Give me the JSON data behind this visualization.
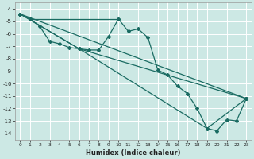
{
  "xlabel": "Humidex (Indice chaleur)",
  "bg_color": "#cce8e4",
  "grid_color": "#ffffff",
  "line_color": "#1a6b62",
  "xlim": [
    -0.5,
    23.5
  ],
  "ylim": [
    -14.5,
    -3.5
  ],
  "xticks": [
    0,
    1,
    2,
    3,
    4,
    5,
    6,
    7,
    8,
    9,
    10,
    11,
    12,
    13,
    14,
    15,
    16,
    17,
    18,
    19,
    20,
    21,
    22,
    23
  ],
  "yticks": [
    -14,
    -13,
    -12,
    -11,
    -10,
    -9,
    -8,
    -7,
    -6,
    -5,
    -4
  ],
  "series_main": {
    "x": [
      0,
      1,
      2,
      3,
      4,
      5,
      6,
      7,
      8,
      9,
      10,
      11,
      12,
      13,
      14,
      15,
      16,
      17,
      18,
      19,
      20,
      21,
      22,
      23
    ],
    "y": [
      -4.4,
      -4.8,
      -5.4,
      -6.6,
      -6.8,
      -7.1,
      -7.2,
      -7.3,
      -7.3,
      -6.2,
      -4.8,
      -5.8,
      -5.6,
      -6.3,
      -8.9,
      -9.3,
      -10.2,
      -10.8,
      -12.0,
      -13.6,
      -13.8,
      -12.9,
      -13.0,
      -11.2
    ]
  },
  "series_lines": [
    {
      "x": [
        0,
        23
      ],
      "y": [
        -4.4,
        -11.2
      ]
    },
    {
      "x": [
        0,
        6,
        23
      ],
      "y": [
        -4.4,
        -7.2,
        -11.2
      ]
    },
    {
      "x": [
        0,
        6,
        19,
        23
      ],
      "y": [
        -4.4,
        -7.2,
        -13.6,
        -11.2
      ]
    },
    {
      "x": [
        1,
        10
      ],
      "y": [
        -4.8,
        -4.8
      ]
    }
  ]
}
